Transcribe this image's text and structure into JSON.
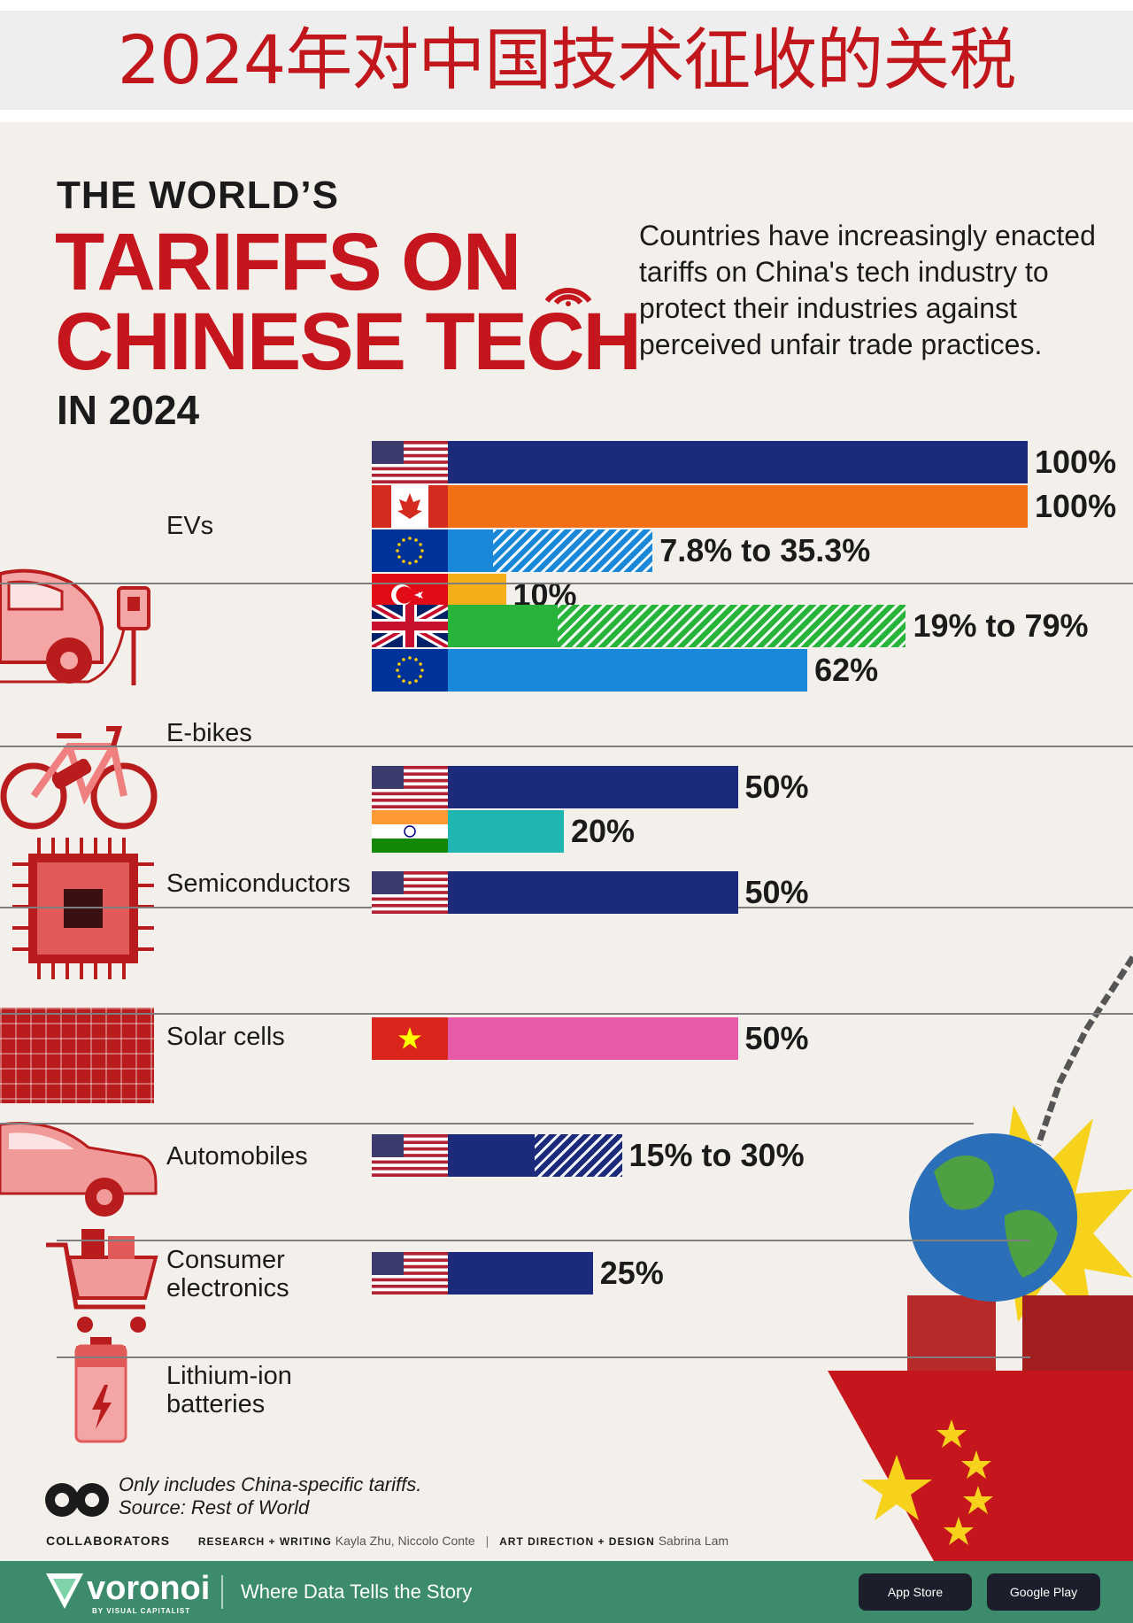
{
  "banner": {
    "title": "2024年对中国技术征收的关税"
  },
  "poster": {
    "kicker": "THE WORLD’S",
    "headline_line1": "TARIFFS ON",
    "headline_line2": "CHINESE TECH",
    "year_line": "IN 2024",
    "intro": "Countries have increasingly enacted tariffs on China's tech industry to protect their industries against perceived unfair trade practices."
  },
  "chart_data": {
    "type": "bar",
    "orientation": "horizontal",
    "value_unit": "%",
    "xlim": [
      0,
      100
    ],
    "groups": [
      {
        "category": "EVs",
        "bars": [
          {
            "country_flag": "USA",
            "value": 100,
            "label": "100%",
            "color": "#1b2a7a"
          },
          {
            "country_flag": "Canada",
            "value": 100,
            "label": "100%",
            "color": "#f26f16"
          },
          {
            "country_flag": "EU",
            "min": 7.8,
            "max": 35.3,
            "label": "7.8% to 35.3%",
            "color": "#1a88d8"
          },
          {
            "country_flag": "Turkey",
            "value": 10,
            "label": "10%",
            "color": "#f4ae18"
          }
        ]
      },
      {
        "category": "E-bikes",
        "bars": [
          {
            "country_flag": "UK",
            "min": 19,
            "max": 79,
            "label": "19% to 79%",
            "color": "#28b43a"
          },
          {
            "country_flag": "EU",
            "value": 62,
            "label": "62%",
            "color": "#1a88d8"
          }
        ]
      },
      {
        "category": "Semiconductors",
        "bars": [
          {
            "country_flag": "USA",
            "value": 50,
            "label": "50%",
            "color": "#1b2a7a"
          },
          {
            "country_flag": "India",
            "value": 20,
            "label": "20%",
            "color": "#1fb5b1"
          }
        ]
      },
      {
        "category": "Solar cells",
        "bars": [
          {
            "country_flag": "USA",
            "value": 50,
            "label": "50%",
            "color": "#1b2a7a"
          }
        ]
      },
      {
        "category": "Automobiles",
        "bars": [
          {
            "country_flag": "Vietnam",
            "value": 50,
            "label": "50%",
            "color": "#e75aa8"
          }
        ]
      },
      {
        "category": "Consumer electronics",
        "bars": [
          {
            "country_flag": "USA",
            "min": 15,
            "max": 30,
            "label": "15% to 30%",
            "color": "#1b2a7a"
          }
        ]
      },
      {
        "category": "Lithium-ion batteries",
        "bars": [
          {
            "country_flag": "USA",
            "value": 25,
            "label": "25%",
            "color": "#1b2a7a"
          }
        ]
      }
    ]
  },
  "category_lines": {
    "evs": [
      "EVs"
    ],
    "ebikes": [
      "E-bikes"
    ],
    "semis": [
      "Semiconductors"
    ],
    "solar": [
      "Solar cells"
    ],
    "autos": [
      "Automobiles"
    ],
    "consumer": [
      "Consumer",
      "electronics"
    ],
    "lithium": [
      "Lithium-ion",
      "batteries"
    ]
  },
  "footnote": {
    "line1": "Only includes China-specific tariffs.",
    "line2": "Source: Rest of World"
  },
  "credits": {
    "collaborators": "COLLABORATORS",
    "research_label": "RESEARCH + WRITING",
    "research_names": "Kayla Zhu, Niccolo Conte",
    "design_label": "ART DIRECTION + DESIGN",
    "design_names": "Sabrina Lam"
  },
  "footer": {
    "brand": "voronoi",
    "brand_sub": "BY VISUAL CAPITALIST",
    "tagline": "Where Data Tells the Story",
    "app_store": "App Store",
    "google_play": "Google Play"
  },
  "colors": {
    "accent_red": "#c5161e",
    "footer_green": "#3c8b6c",
    "background": "#f3f0ec"
  }
}
